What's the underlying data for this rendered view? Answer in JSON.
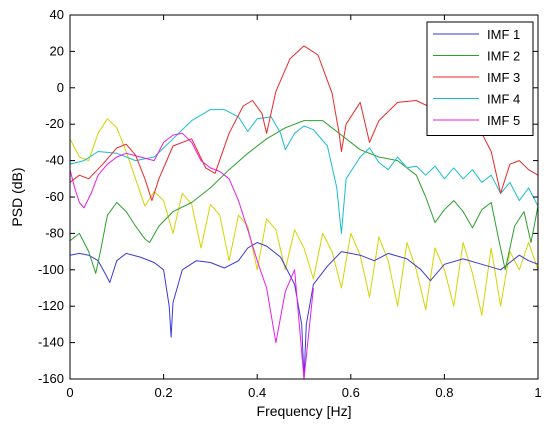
{
  "chart_data": {
    "type": "line",
    "title": "",
    "xlabel": "Frequency [Hz]",
    "ylabel": "PSD (dB)",
    "xlim": [
      0,
      1
    ],
    "ylim": [
      -160,
      40
    ],
    "xticks": [
      0,
      0.2,
      0.4,
      0.6,
      0.8,
      1
    ],
    "xtick_labels": [
      "0",
      "0.2",
      "0.4",
      "0.6",
      "0.8",
      "1"
    ],
    "yticks": [
      40,
      20,
      0,
      -20,
      -40,
      -60,
      -80,
      -100,
      -120,
      -140,
      -160
    ],
    "ytick_labels": [
      "40",
      "20",
      "0",
      "-20",
      "-40",
      "-60",
      "-80",
      "-100",
      "-120",
      "-140",
      "-160"
    ],
    "grid": false,
    "legend_position": "top-right",
    "series": [
      {
        "name": "IMF 1",
        "color": "#3a3ad6",
        "x": [
          0,
          0.02,
          0.04,
          0.06,
          0.075,
          0.085,
          0.1,
          0.12,
          0.15,
          0.18,
          0.2,
          0.212,
          0.216,
          0.22,
          0.24,
          0.27,
          0.3,
          0.33,
          0.36,
          0.38,
          0.4,
          0.42,
          0.45,
          0.48,
          0.495,
          0.5,
          0.505,
          0.52,
          0.55,
          0.58,
          0.62,
          0.65,
          0.68,
          0.72,
          0.75,
          0.77,
          0.78,
          0.8,
          0.84,
          0.88,
          0.92,
          0.94,
          0.96,
          0.98,
          1
        ],
        "y": [
          -92,
          -91,
          -92,
          -95,
          -102,
          -107,
          -95,
          -91,
          -93,
          -96,
          -100,
          -120,
          -137,
          -118,
          -100,
          -95,
          -96,
          -99,
          -95,
          -88,
          -85,
          -87,
          -93,
          -108,
          -130,
          -160,
          -130,
          -108,
          -98,
          -90,
          -92,
          -95,
          -91,
          -94,
          -100,
          -106,
          -103,
          -97,
          -94,
          -97,
          -100,
          -96,
          -92,
          -95,
          -97
        ]
      },
      {
        "name": "IMF 2",
        "color": "#2ca02c",
        "x": [
          0,
          0.02,
          0.04,
          0.055,
          0.065,
          0.08,
          0.1,
          0.12,
          0.14,
          0.16,
          0.17,
          0.19,
          0.22,
          0.26,
          0.3,
          0.34,
          0.38,
          0.42,
          0.46,
          0.5,
          0.54,
          0.58,
          0.62,
          0.66,
          0.7,
          0.74,
          0.76,
          0.78,
          0.8,
          0.82,
          0.84,
          0.86,
          0.88,
          0.9,
          0.915,
          0.93,
          0.95,
          0.97,
          0.985,
          1
        ],
        "y": [
          -84,
          -80,
          -90,
          -102,
          -90,
          -70,
          -63,
          -68,
          -76,
          -83,
          -85,
          -76,
          -68,
          -63,
          -55,
          -45,
          -36,
          -28,
          -22,
          -18,
          -18,
          -26,
          -34,
          -38,
          -40,
          -48,
          -60,
          -74,
          -67,
          -62,
          -68,
          -77,
          -67,
          -63,
          -82,
          -100,
          -76,
          -68,
          -85,
          -65
        ]
      },
      {
        "name": "IMF 3",
        "color": "#e8292b",
        "x": [
          0,
          0.02,
          0.04,
          0.07,
          0.1,
          0.12,
          0.14,
          0.16,
          0.175,
          0.19,
          0.22,
          0.26,
          0.29,
          0.31,
          0.34,
          0.37,
          0.39,
          0.41,
          0.42,
          0.44,
          0.47,
          0.5,
          0.53,
          0.56,
          0.575,
          0.58,
          0.59,
          0.62,
          0.64,
          0.66,
          0.7,
          0.74,
          0.78,
          0.82,
          0.86,
          0.88,
          0.9,
          0.92,
          0.94,
          0.96,
          0.98,
          1
        ],
        "y": [
          -52,
          -48,
          -50,
          -42,
          -33,
          -31,
          -37,
          -50,
          -62,
          -50,
          -32,
          -28,
          -44,
          -47,
          -25,
          -10,
          -7,
          -14,
          -25,
          -2,
          16,
          23,
          18,
          -3,
          -25,
          -35,
          -20,
          -8,
          -30,
          -18,
          -8,
          -7,
          -12,
          -14,
          -20,
          -25,
          -35,
          -58,
          -42,
          -40,
          -45,
          -48
        ]
      },
      {
        "name": "IMF 4",
        "color": "#17becf",
        "x": [
          0,
          0.03,
          0.06,
          0.1,
          0.14,
          0.18,
          0.22,
          0.26,
          0.3,
          0.33,
          0.36,
          0.38,
          0.4,
          0.43,
          0.45,
          0.46,
          0.48,
          0.5,
          0.52,
          0.55,
          0.57,
          0.58,
          0.59,
          0.62,
          0.64,
          0.66,
          0.68,
          0.7,
          0.72,
          0.74,
          0.76,
          0.78,
          0.8,
          0.82,
          0.84,
          0.86,
          0.88,
          0.9,
          0.92,
          0.94,
          0.96,
          0.98,
          1
        ],
        "y": [
          -42,
          -40,
          -35,
          -36,
          -40,
          -38,
          -28,
          -18,
          -12,
          -12,
          -16,
          -24,
          -17,
          -16,
          -25,
          -34,
          -25,
          -21,
          -23,
          -32,
          -55,
          -80,
          -50,
          -38,
          -33,
          -41,
          -45,
          -38,
          -44,
          -43,
          -48,
          -43,
          -50,
          -44,
          -50,
          -45,
          -52,
          -48,
          -58,
          -52,
          -62,
          -55,
          -65
        ]
      },
      {
        "name": "IMF 5",
        "color": "#e61ee6",
        "x": [
          0,
          0.01,
          0.02,
          0.03,
          0.045,
          0.06,
          0.08,
          0.1,
          0.12,
          0.15,
          0.18,
          0.2,
          0.22,
          0.24,
          0.26,
          0.28,
          0.3,
          0.32,
          0.34,
          0.36,
          0.38,
          0.4,
          0.42,
          0.44,
          0.46,
          0.48,
          0.5,
          0.52
        ],
        "y": [
          -45,
          -55,
          -63,
          -66,
          -58,
          -48,
          -42,
          -38,
          -36,
          -38,
          -40,
          -30,
          -26,
          -25,
          -30,
          -40,
          -44,
          -46,
          -50,
          -62,
          -78,
          -95,
          -110,
          -140,
          -112,
          -100,
          -160,
          -110
        ]
      },
      {
        "name": "",
        "color": "#d4d400",
        "x": [
          0,
          0.02,
          0.04,
          0.06,
          0.08,
          0.1,
          0.12,
          0.14,
          0.16,
          0.18,
          0.2,
          0.22,
          0.24,
          0.26,
          0.28,
          0.3,
          0.32,
          0.34,
          0.36,
          0.38,
          0.4,
          0.42,
          0.44,
          0.46,
          0.48,
          0.5,
          0.52,
          0.54,
          0.56,
          0.58,
          0.6,
          0.62,
          0.64,
          0.66,
          0.68,
          0.7,
          0.72,
          0.74,
          0.76,
          0.78,
          0.8,
          0.82,
          0.84,
          0.86,
          0.88,
          0.9,
          0.92,
          0.94,
          0.96,
          0.98,
          1
        ],
        "y": [
          -28,
          -38,
          -40,
          -25,
          -17,
          -22,
          -35,
          -50,
          -65,
          -57,
          -62,
          -80,
          -58,
          -64,
          -88,
          -64,
          -70,
          -95,
          -70,
          -76,
          -100,
          -72,
          -78,
          -100,
          -78,
          -88,
          -105,
          -80,
          -90,
          -110,
          -80,
          -92,
          -115,
          -82,
          -95,
          -120,
          -85,
          -100,
          -122,
          -88,
          -100,
          -120,
          -85,
          -102,
          -125,
          -88,
          -120,
          -90,
          -100,
          -85,
          -100
        ]
      }
    ]
  },
  "legend": {
    "entries": [
      "IMF 1",
      "IMF 2",
      "IMF 3",
      "IMF 4",
      "IMF 5"
    ]
  }
}
